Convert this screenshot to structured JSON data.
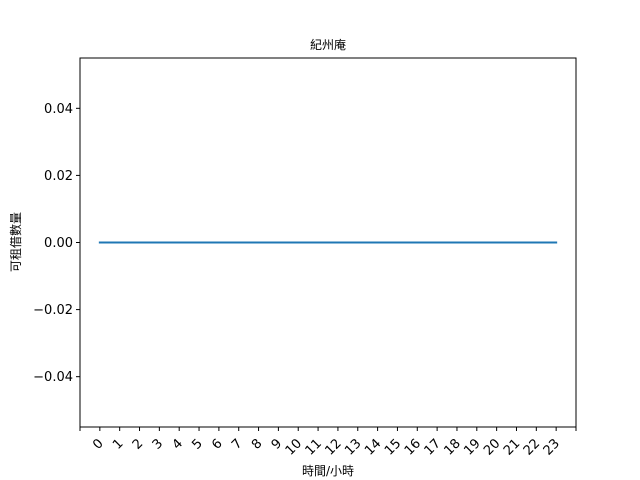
{
  "chart_data": {
    "type": "line",
    "title": "紀州庵",
    "xlabel": "時間/小時",
    "ylabel": "可租借數量",
    "x": [
      0,
      1,
      2,
      3,
      4,
      5,
      6,
      7,
      8,
      9,
      10,
      11,
      12,
      13,
      14,
      15,
      16,
      17,
      18,
      19,
      20,
      21,
      22,
      23
    ],
    "series": [
      {
        "values": [
          0,
          0,
          0,
          0,
          0,
          0,
          0,
          0,
          0,
          0,
          0,
          0,
          0,
          0,
          0,
          0,
          0,
          0,
          0,
          0,
          0,
          0,
          0,
          0
        ]
      }
    ],
    "xlim": [
      -1,
      24
    ],
    "ylim": [
      -0.055,
      0.055
    ],
    "yticks": [
      -0.04,
      -0.02,
      0.0,
      0.02,
      0.04
    ],
    "ytick_labels": [
      "−0.04",
      "−0.02",
      "0.00",
      "0.02",
      "0.04"
    ],
    "xtick_labels": [
      "0",
      "1",
      "2",
      "3",
      "4",
      "5",
      "6",
      "7",
      "8",
      "9",
      "10",
      "11",
      "12",
      "13",
      "14",
      "15",
      "16",
      "17",
      "18",
      "19",
      "20",
      "21",
      "22",
      "23"
    ],
    "line_color": "#1f77b4",
    "grid": false
  }
}
